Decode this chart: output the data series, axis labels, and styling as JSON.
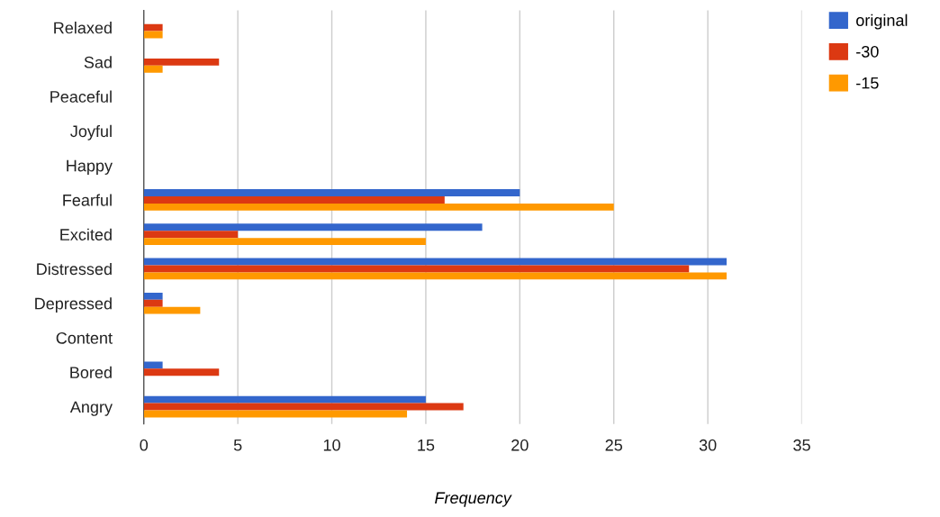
{
  "chart_data": {
    "type": "bar",
    "orientation": "horizontal",
    "xlabel": "Frequency",
    "categories": [
      "Relaxed",
      "Sad",
      "Peaceful",
      "Joyful",
      "Happy",
      "Fearful",
      "Excited",
      "Distressed",
      "Depressed",
      "Content",
      "Bored",
      "Angry"
    ],
    "series": [
      {
        "name": "original",
        "color": "#3366cc",
        "values": [
          0,
          0,
          0,
          0,
          0,
          20,
          18,
          31,
          1,
          0,
          1,
          15
        ]
      },
      {
        "name": "-30",
        "color": "#dc3912",
        "values": [
          1,
          4,
          0,
          0,
          0,
          16,
          5,
          29,
          1,
          0,
          4,
          17
        ]
      },
      {
        "name": "-15",
        "color": "#ff9900",
        "values": [
          1,
          1,
          0,
          0,
          0,
          25,
          15,
          31,
          3,
          0,
          0,
          14
        ]
      }
    ],
    "xlim": [
      0,
      35
    ],
    "xticks": [
      0,
      5,
      10,
      15,
      20,
      25,
      30,
      35
    ],
    "grid": "x",
    "legend": "top right"
  }
}
